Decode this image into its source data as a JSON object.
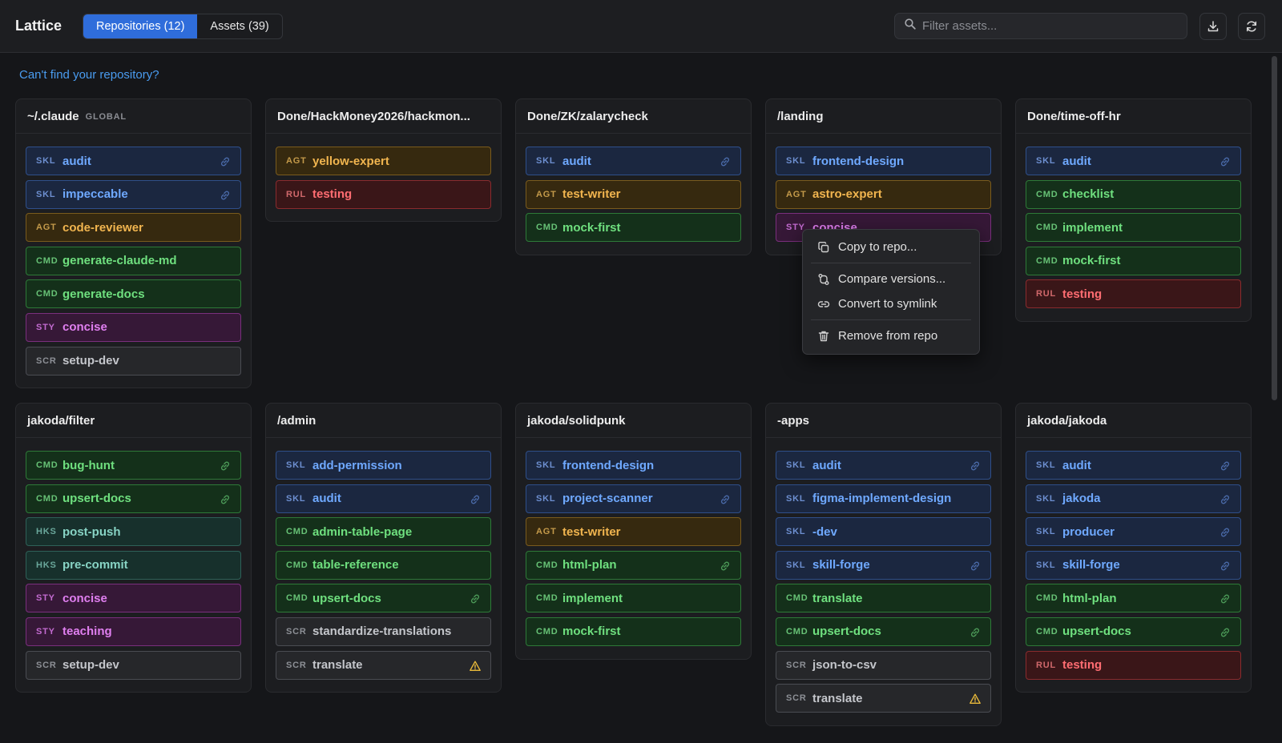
{
  "app": {
    "title": "Lattice"
  },
  "tabs": [
    {
      "label": "Repositories (12)",
      "active": true
    },
    {
      "label": "Assets (39)",
      "active": false
    }
  ],
  "search": {
    "placeholder": "Filter assets..."
  },
  "toolbar": {
    "download_icon": "download-icon",
    "refresh_icon": "refresh-icon"
  },
  "help_link": "Can't find your repository?",
  "colors": {
    "accent": "#2f6ddb",
    "SKL": "#6fa9ff",
    "AGT": "#f1b54f",
    "CMD": "#6fe07f",
    "STY": "#e07ff0",
    "SCR": "#c4c6cb",
    "RUL": "#ff6d72",
    "HKS": "#88d4c5"
  },
  "repos": [
    {
      "name": "~/.claude",
      "badge": "GLOBAL",
      "items": [
        {
          "type": "SKL",
          "name": "audit",
          "icon": "link"
        },
        {
          "type": "SKL",
          "name": "impeccable",
          "icon": "link"
        },
        {
          "type": "AGT",
          "name": "code-reviewer"
        },
        {
          "type": "CMD",
          "name": "generate-claude-md"
        },
        {
          "type": "CMD",
          "name": "generate-docs"
        },
        {
          "type": "STY",
          "name": "concise"
        },
        {
          "type": "SCR",
          "name": "setup-dev"
        }
      ]
    },
    {
      "name": "Done/HackMoney2026/hackmon...",
      "items": [
        {
          "type": "AGT",
          "name": "yellow-expert"
        },
        {
          "type": "RUL",
          "name": "testing"
        }
      ]
    },
    {
      "name": "Done/ZK/zalarycheck",
      "items": [
        {
          "type": "SKL",
          "name": "audit",
          "icon": "link"
        },
        {
          "type": "AGT",
          "name": "test-writer"
        },
        {
          "type": "CMD",
          "name": "mock-first"
        }
      ]
    },
    {
      "name": "/landing",
      "items": [
        {
          "type": "SKL",
          "name": "frontend-design"
        },
        {
          "type": "AGT",
          "name": "astro-expert"
        },
        {
          "type": "STY",
          "name": "concise"
        }
      ]
    },
    {
      "name": "Done/time-off-hr",
      "items": [
        {
          "type": "SKL",
          "name": "audit",
          "icon": "link"
        },
        {
          "type": "CMD",
          "name": "checklist"
        },
        {
          "type": "CMD",
          "name": "implement"
        },
        {
          "type": "CMD",
          "name": "mock-first"
        },
        {
          "type": "RUL",
          "name": "testing"
        }
      ]
    },
    {
      "name": "jakoda/filter",
      "items": [
        {
          "type": "CMD",
          "name": "bug-hunt",
          "icon": "link"
        },
        {
          "type": "CMD",
          "name": "upsert-docs",
          "icon": "link"
        },
        {
          "type": "HKS",
          "name": "post-push"
        },
        {
          "type": "HKS",
          "name": "pre-commit"
        },
        {
          "type": "STY",
          "name": "concise"
        },
        {
          "type": "STY",
          "name": "teaching"
        },
        {
          "type": "SCR",
          "name": "setup-dev"
        }
      ]
    },
    {
      "name": "/admin",
      "items": [
        {
          "type": "SKL",
          "name": "add-permission"
        },
        {
          "type": "SKL",
          "name": "audit",
          "icon": "link"
        },
        {
          "type": "CMD",
          "name": "admin-table-page"
        },
        {
          "type": "CMD",
          "name": "table-reference"
        },
        {
          "type": "CMD",
          "name": "upsert-docs",
          "icon": "link"
        },
        {
          "type": "SCR",
          "name": "standardize-translations"
        },
        {
          "type": "SCR",
          "name": "translate",
          "icon": "warning"
        }
      ]
    },
    {
      "name": "jakoda/solidpunk",
      "items": [
        {
          "type": "SKL",
          "name": "frontend-design"
        },
        {
          "type": "SKL",
          "name": "project-scanner",
          "icon": "link"
        },
        {
          "type": "AGT",
          "name": "test-writer"
        },
        {
          "type": "CMD",
          "name": "html-plan",
          "icon": "link"
        },
        {
          "type": "CMD",
          "name": "implement"
        },
        {
          "type": "CMD",
          "name": "mock-first"
        }
      ]
    },
    {
      "name": "-apps",
      "items": [
        {
          "type": "SKL",
          "name": "audit",
          "icon": "link"
        },
        {
          "type": "SKL",
          "name": "figma-implement-design"
        },
        {
          "type": "SKL",
          "name": "-dev"
        },
        {
          "type": "SKL",
          "name": "skill-forge",
          "icon": "link"
        },
        {
          "type": "CMD",
          "name": "translate"
        },
        {
          "type": "CMD",
          "name": "upsert-docs",
          "icon": "link"
        },
        {
          "type": "SCR",
          "name": "json-to-csv"
        },
        {
          "type": "SCR",
          "name": "translate",
          "icon": "warning"
        }
      ]
    },
    {
      "name": "jakoda/jakoda",
      "items": [
        {
          "type": "SKL",
          "name": "audit",
          "icon": "link"
        },
        {
          "type": "SKL",
          "name": "jakoda",
          "icon": "link"
        },
        {
          "type": "SKL",
          "name": "producer",
          "icon": "link"
        },
        {
          "type": "SKL",
          "name": "skill-forge",
          "icon": "link"
        },
        {
          "type": "CMD",
          "name": "html-plan",
          "icon": "link"
        },
        {
          "type": "CMD",
          "name": "upsert-docs",
          "icon": "link"
        },
        {
          "type": "RUL",
          "name": "testing"
        }
      ]
    }
  ],
  "context_menu": {
    "items": [
      {
        "label": "Copy to repo...",
        "icon": "copy-icon"
      },
      {
        "label": "Compare versions...",
        "icon": "compare-icon"
      },
      {
        "label": "Convert to symlink",
        "icon": "link-icon"
      },
      {
        "label": "Remove from repo",
        "icon": "trash-icon"
      }
    ]
  }
}
